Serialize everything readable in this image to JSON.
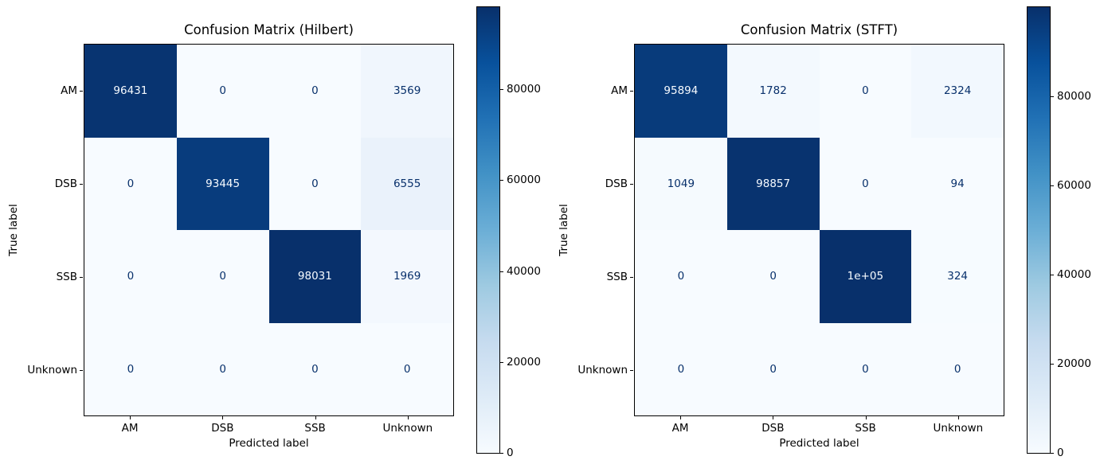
{
  "figure": {
    "background": "#ffffff"
  },
  "colors": {
    "cmap_low": "#f7fbff",
    "cmap_high": "#08306b",
    "cell_text_dark": "#08306b",
    "cell_text_light": "#f7fbff",
    "spine": "#000000",
    "colormap_name": "Blues"
  },
  "chart_data": [
    {
      "type": "heatmap",
      "title": "Confusion Matrix (Hilbert)",
      "xlabel": "Predicted label",
      "ylabel": "True label",
      "x_categories": [
        "AM",
        "DSB",
        "SSB",
        "Unknown"
      ],
      "y_categories": [
        "AM",
        "DSB",
        "SSB",
        "Unknown"
      ],
      "values": [
        [
          96431,
          0,
          0,
          3569
        ],
        [
          0,
          93445,
          0,
          6555
        ],
        [
          0,
          0,
          98031,
          1969
        ],
        [
          0,
          0,
          0,
          0
        ]
      ],
      "cell_labels": [
        [
          "96431",
          "0",
          "0",
          "3569"
        ],
        [
          "0",
          "93445",
          "0",
          "6555"
        ],
        [
          "0",
          "0",
          "98031",
          "1969"
        ],
        [
          "0",
          "0",
          "0",
          "0"
        ]
      ],
      "vmin": 0,
      "vmax": 98031,
      "colorbar_tick_labels": [
        "0",
        "20000",
        "40000",
        "60000",
        "80000"
      ],
      "colorbar_tick_values": [
        0,
        20000,
        40000,
        60000,
        80000
      ],
      "legend_position": "right-colorbar",
      "grid": false
    },
    {
      "type": "heatmap",
      "title": "Confusion Matrix (STFT)",
      "xlabel": "Predicted label",
      "ylabel": "True label",
      "x_categories": [
        "AM",
        "DSB",
        "SSB",
        "Unknown"
      ],
      "y_categories": [
        "AM",
        "DSB",
        "SSB",
        "Unknown"
      ],
      "values": [
        [
          95894,
          1782,
          0,
          2324
        ],
        [
          1049,
          98857,
          0,
          94
        ],
        [
          0,
          0,
          100000,
          324
        ],
        [
          0,
          0,
          0,
          0
        ]
      ],
      "cell_labels": [
        [
          "95894",
          "1782",
          "0",
          "2324"
        ],
        [
          "1049",
          "98857",
          "0",
          "94"
        ],
        [
          "0",
          "0",
          "1e+05",
          "324"
        ],
        [
          "0",
          "0",
          "0",
          "0"
        ]
      ],
      "vmin": 0,
      "vmax": 100000,
      "colorbar_tick_labels": [
        "0",
        "20000",
        "40000",
        "60000",
        "80000"
      ],
      "colorbar_tick_values": [
        0,
        20000,
        40000,
        60000,
        80000
      ],
      "legend_position": "right-colorbar",
      "grid": false
    }
  ]
}
